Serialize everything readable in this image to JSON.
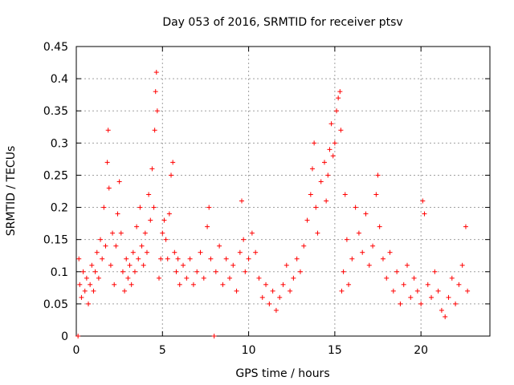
{
  "chart_data": {
    "type": "scatter",
    "title": "Day 053 of 2016, SRMTID for receiver ptsv",
    "xlabel": "GPS time / hours",
    "ylabel": "SRMTID / TECUs",
    "xlim": [
      0,
      24
    ],
    "ylim": [
      0,
      0.45
    ],
    "xticks": [
      0,
      5,
      10,
      15,
      20
    ],
    "xtick_labels": [
      "0",
      "5",
      "10",
      "15",
      "20"
    ],
    "yticks": [
      0,
      0.05,
      0.1,
      0.15,
      0.2,
      0.25,
      0.3,
      0.35,
      0.4,
      0.45
    ],
    "ytick_labels": [
      "0",
      "0.05",
      "0.1",
      "0.15",
      "0.2",
      "0.25",
      "0.3",
      "0.35",
      "0.4",
      "0.45"
    ],
    "grid": true,
    "marker": "+",
    "color": "#ff0000",
    "series": [
      {
        "name": "ptsv",
        "points": [
          [
            0.1,
            0.0
          ],
          [
            0.15,
            0.12
          ],
          [
            0.2,
            0.08
          ],
          [
            0.3,
            0.06
          ],
          [
            0.4,
            0.1
          ],
          [
            0.5,
            0.07
          ],
          [
            0.6,
            0.09
          ],
          [
            0.7,
            0.05
          ],
          [
            0.8,
            0.08
          ],
          [
            0.9,
            0.11
          ],
          [
            1.0,
            0.07
          ],
          [
            1.1,
            0.1
          ],
          [
            1.2,
            0.13
          ],
          [
            1.3,
            0.09
          ],
          [
            1.4,
            0.15
          ],
          [
            1.5,
            0.12
          ],
          [
            1.6,
            0.2
          ],
          [
            1.7,
            0.14
          ],
          [
            1.8,
            0.27
          ],
          [
            1.85,
            0.32
          ],
          [
            1.9,
            0.23
          ],
          [
            2.0,
            0.11
          ],
          [
            2.1,
            0.16
          ],
          [
            2.2,
            0.08
          ],
          [
            2.3,
            0.14
          ],
          [
            2.4,
            0.19
          ],
          [
            2.5,
            0.24
          ],
          [
            2.6,
            0.16
          ],
          [
            2.7,
            0.1
          ],
          [
            2.8,
            0.07
          ],
          [
            2.9,
            0.12
          ],
          [
            3.0,
            0.09
          ],
          [
            3.1,
            0.11
          ],
          [
            3.2,
            0.08
          ],
          [
            3.3,
            0.13
          ],
          [
            3.4,
            0.1
          ],
          [
            3.5,
            0.17
          ],
          [
            3.6,
            0.12
          ],
          [
            3.7,
            0.2
          ],
          [
            3.8,
            0.14
          ],
          [
            3.9,
            0.11
          ],
          [
            4.0,
            0.16
          ],
          [
            4.1,
            0.13
          ],
          [
            4.2,
            0.22
          ],
          [
            4.3,
            0.18
          ],
          [
            4.4,
            0.26
          ],
          [
            4.5,
            0.2
          ],
          [
            4.55,
            0.32
          ],
          [
            4.6,
            0.38
          ],
          [
            4.65,
            0.41
          ],
          [
            4.7,
            0.35
          ],
          [
            4.8,
            0.09
          ],
          [
            4.9,
            0.12
          ],
          [
            5.0,
            0.16
          ],
          [
            5.1,
            0.18
          ],
          [
            5.2,
            0.15
          ],
          [
            5.3,
            0.12
          ],
          [
            5.4,
            0.19
          ],
          [
            5.5,
            0.25
          ],
          [
            5.6,
            0.27
          ],
          [
            5.7,
            0.13
          ],
          [
            5.8,
            0.1
          ],
          [
            5.9,
            0.12
          ],
          [
            6.0,
            0.08
          ],
          [
            6.2,
            0.11
          ],
          [
            6.4,
            0.09
          ],
          [
            6.6,
            0.12
          ],
          [
            6.8,
            0.08
          ],
          [
            7.0,
            0.1
          ],
          [
            7.2,
            0.13
          ],
          [
            7.4,
            0.09
          ],
          [
            7.6,
            0.17
          ],
          [
            7.7,
            0.2
          ],
          [
            7.8,
            0.12
          ],
          [
            8.0,
            0.0
          ],
          [
            8.1,
            0.1
          ],
          [
            8.3,
            0.14
          ],
          [
            8.5,
            0.08
          ],
          [
            8.7,
            0.12
          ],
          [
            8.9,
            0.09
          ],
          [
            9.1,
            0.11
          ],
          [
            9.3,
            0.07
          ],
          [
            9.5,
            0.13
          ],
          [
            9.6,
            0.21
          ],
          [
            9.7,
            0.15
          ],
          [
            9.8,
            0.1
          ],
          [
            10.0,
            0.12
          ],
          [
            10.2,
            0.16
          ],
          [
            10.4,
            0.13
          ],
          [
            10.6,
            0.09
          ],
          [
            10.8,
            0.06
          ],
          [
            11.0,
            0.08
          ],
          [
            11.2,
            0.05
          ],
          [
            11.4,
            0.07
          ],
          [
            11.6,
            0.04
          ],
          [
            11.8,
            0.06
          ],
          [
            12.0,
            0.08
          ],
          [
            12.2,
            0.11
          ],
          [
            12.4,
            0.07
          ],
          [
            12.6,
            0.09
          ],
          [
            12.8,
            0.12
          ],
          [
            13.0,
            0.1
          ],
          [
            13.2,
            0.14
          ],
          [
            13.4,
            0.18
          ],
          [
            13.6,
            0.22
          ],
          [
            13.7,
            0.26
          ],
          [
            13.8,
            0.3
          ],
          [
            13.9,
            0.2
          ],
          [
            14.0,
            0.16
          ],
          [
            14.2,
            0.24
          ],
          [
            14.4,
            0.27
          ],
          [
            14.5,
            0.21
          ],
          [
            14.6,
            0.25
          ],
          [
            14.7,
            0.29
          ],
          [
            14.8,
            0.33
          ],
          [
            14.9,
            0.28
          ],
          [
            15.0,
            0.3
          ],
          [
            15.1,
            0.35
          ],
          [
            15.2,
            0.37
          ],
          [
            15.3,
            0.38
          ],
          [
            15.35,
            0.32
          ],
          [
            15.4,
            0.07
          ],
          [
            15.5,
            0.1
          ],
          [
            15.6,
            0.22
          ],
          [
            15.7,
            0.15
          ],
          [
            15.8,
            0.08
          ],
          [
            16.0,
            0.12
          ],
          [
            16.2,
            0.2
          ],
          [
            16.4,
            0.16
          ],
          [
            16.6,
            0.13
          ],
          [
            16.8,
            0.19
          ],
          [
            17.0,
            0.11
          ],
          [
            17.2,
            0.14
          ],
          [
            17.4,
            0.22
          ],
          [
            17.5,
            0.25
          ],
          [
            17.6,
            0.17
          ],
          [
            17.8,
            0.12
          ],
          [
            18.0,
            0.09
          ],
          [
            18.2,
            0.13
          ],
          [
            18.4,
            0.07
          ],
          [
            18.6,
            0.1
          ],
          [
            18.8,
            0.05
          ],
          [
            19.0,
            0.08
          ],
          [
            19.2,
            0.11
          ],
          [
            19.4,
            0.06
          ],
          [
            19.6,
            0.09
          ],
          [
            19.8,
            0.07
          ],
          [
            20.0,
            0.05
          ],
          [
            20.1,
            0.21
          ],
          [
            20.2,
            0.19
          ],
          [
            20.4,
            0.08
          ],
          [
            20.6,
            0.06
          ],
          [
            20.8,
            0.1
          ],
          [
            21.0,
            0.07
          ],
          [
            21.2,
            0.04
          ],
          [
            21.4,
            0.03
          ],
          [
            21.6,
            0.06
          ],
          [
            21.8,
            0.09
          ],
          [
            22.0,
            0.05
          ],
          [
            22.2,
            0.08
          ],
          [
            22.4,
            0.11
          ],
          [
            22.6,
            0.17
          ],
          [
            22.7,
            0.07
          ]
        ]
      }
    ]
  }
}
